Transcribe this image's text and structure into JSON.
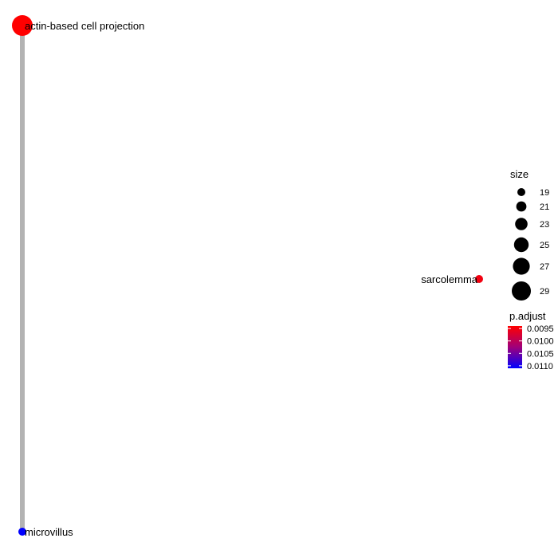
{
  "chart_data": {
    "type": "network",
    "nodes": [
      {
        "label": "actin-based cell projection",
        "size": 29,
        "p_adjust": 0.0095,
        "color": "#ff0000"
      },
      {
        "label": "sarcolemma",
        "size": 19,
        "p_adjust": 0.0095,
        "color": "#f20010"
      },
      {
        "label": "microvillus",
        "size": 19,
        "p_adjust": 0.0111,
        "color": "#0000ff"
      }
    ],
    "edges": [
      {
        "from": "actin-based cell projection",
        "to": "microvillus"
      }
    ],
    "edge_color": "#b3b3b3",
    "legend": {
      "placement": "right",
      "size": {
        "title": "size",
        "values": [
          19,
          21,
          23,
          25,
          27,
          29
        ],
        "labels": [
          "19",
          "21",
          "23",
          "25",
          "27",
          "29"
        ]
      },
      "p_adjust": {
        "title": "p.adjust",
        "tick_values": [
          0.0095,
          0.01,
          0.0105,
          0.011
        ],
        "tick_labels": [
          "0.0095",
          "0.0100",
          "0.0105",
          "0.0110"
        ],
        "range": [
          0.0094,
          0.0111
        ],
        "color_low_p": "#ff0000",
        "color_high_p": "#0000ff"
      }
    }
  }
}
